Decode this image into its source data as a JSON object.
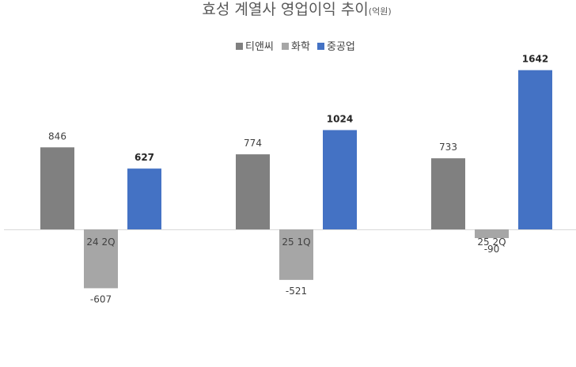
{
  "chart_data": {
    "type": "bar",
    "title": "효성 계열사 영업이익 추이",
    "title_suffix": "(억원)",
    "categories": [
      "24 2Q",
      "25 1Q",
      "25 2Q"
    ],
    "series": [
      {
        "name": "티앤씨",
        "values": [
          846,
          774,
          733
        ],
        "color": "#808080",
        "label_bold": false
      },
      {
        "name": "화학",
        "values": [
          -607,
          -521,
          -90
        ],
        "color": "#a6a6a6",
        "label_bold": false
      },
      {
        "name": "중공업",
        "values": [
          627,
          1024,
          1642
        ],
        "color": "#4472c4",
        "label_bold": true
      }
    ],
    "ylim": [
      -1200,
      1900
    ],
    "grid": false,
    "legend_position": "top-center"
  }
}
